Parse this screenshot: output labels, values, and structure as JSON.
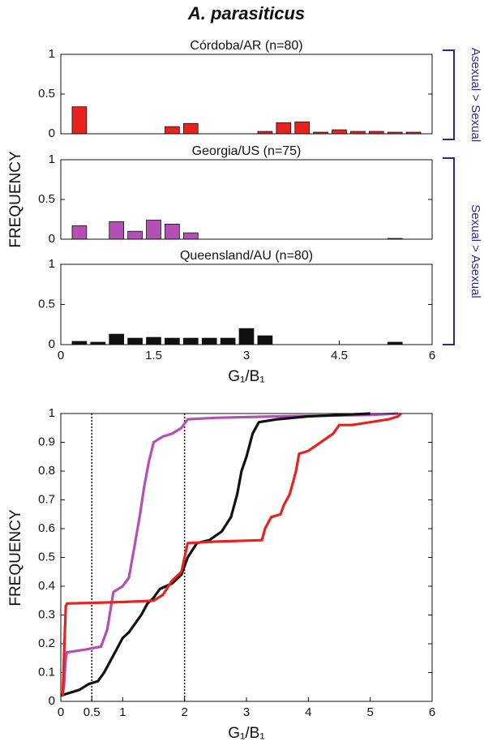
{
  "title": "A. parasiticus",
  "chart_data": [
    {
      "type": "bar",
      "title": "Córdoba/AR (n=80)",
      "color": "#e8231f",
      "annotation": "Asexual > Sexual",
      "x": [
        0.3,
        0.6,
        0.9,
        1.2,
        1.5,
        1.8,
        2.1,
        2.4,
        2.7,
        3.0,
        3.3,
        3.6,
        3.9,
        4.2,
        4.5,
        4.8,
        5.1,
        5.4,
        5.7
      ],
      "values": [
        0.34,
        0,
        0,
        0,
        0,
        0.09,
        0.13,
        0,
        0,
        0,
        0.03,
        0.14,
        0.15,
        0.02,
        0.05,
        0.03,
        0.03,
        0.02,
        0.02
      ],
      "xlim": [
        0,
        6
      ],
      "ylim": [
        0,
        1
      ],
      "yticks": [
        0,
        0.5,
        1
      ]
    },
    {
      "type": "bar",
      "title": "Georgia/US (n=75)",
      "color": "#b44fb4",
      "annotation": "Sexual > Asexual",
      "ylabel": "FREQUENCY",
      "x": [
        0.3,
        0.6,
        0.9,
        1.2,
        1.5,
        1.8,
        2.1,
        2.4,
        2.7,
        3.0,
        3.3,
        3.6,
        3.9,
        4.2,
        4.5,
        4.8,
        5.1,
        5.4,
        5.7
      ],
      "values": [
        0.17,
        0,
        0.22,
        0.1,
        0.24,
        0.19,
        0.08,
        0,
        0,
        0,
        0,
        0,
        0,
        0,
        0,
        0,
        0,
        0.01,
        0
      ],
      "xlim": [
        0,
        6
      ],
      "ylim": [
        0,
        1
      ],
      "yticks": [
        0,
        0.5,
        1
      ]
    },
    {
      "type": "bar",
      "title": "Queensland/AU (n=80)",
      "color": "#111111",
      "xlabel": "G₁/B₁",
      "x": [
        0.3,
        0.6,
        0.9,
        1.2,
        1.5,
        1.8,
        2.1,
        2.4,
        2.7,
        3.0,
        3.3,
        3.6,
        3.9,
        4.2,
        4.5,
        4.8,
        5.1,
        5.4,
        5.7
      ],
      "values": [
        0.04,
        0.03,
        0.13,
        0.08,
        0.09,
        0.08,
        0.08,
        0.08,
        0.08,
        0.2,
        0.11,
        0,
        0,
        0,
        0,
        0,
        0,
        0.03,
        0
      ],
      "xlim": [
        0,
        6
      ],
      "ylim": [
        0,
        1
      ],
      "yticks": [
        0,
        0.5,
        1
      ],
      "xticks": [
        0,
        1.5,
        3,
        4.5,
        6
      ]
    },
    {
      "type": "line",
      "xlabel": "G₁/B₁",
      "ylabel": "FREQUENCY",
      "xlim": [
        0,
        6
      ],
      "ylim": [
        0,
        1
      ],
      "xticks": [
        0,
        0.5,
        1,
        2,
        3,
        4,
        5,
        6
      ],
      "yticks": [
        0,
        0.1,
        0.2,
        0.3,
        0.4,
        0.5,
        0.6,
        0.7,
        0.8,
        0.9,
        1
      ],
      "vlines": [
        0.5,
        2
      ],
      "series": [
        {
          "color": "#b44fb4",
          "x": [
            0.02,
            0.05,
            0.08,
            0.1,
            0.4,
            0.65,
            0.75,
            0.85,
            1.0,
            1.1,
            1.2,
            1.28,
            1.35,
            1.42,
            1.5,
            1.65,
            1.8,
            1.95,
            2.05,
            2.5,
            3.5,
            5,
            5.45
          ],
          "values": [
            0.02,
            0.05,
            0.15,
            0.17,
            0.18,
            0.19,
            0.25,
            0.38,
            0.4,
            0.43,
            0.55,
            0.65,
            0.75,
            0.83,
            0.9,
            0.92,
            0.93,
            0.95,
            0.98,
            0.985,
            0.99,
            0.995,
            1
          ]
        },
        {
          "color": "#111111",
          "x": [
            0,
            0.3,
            0.45,
            0.6,
            0.7,
            0.8,
            0.9,
            1.0,
            1.1,
            1.3,
            1.4,
            1.5,
            1.6,
            1.8,
            1.95,
            2.05,
            2.2,
            2.4,
            2.6,
            2.75,
            2.85,
            2.92,
            3.0,
            3.1,
            3.2,
            3.5,
            4.0,
            4.5,
            5.0
          ],
          "values": [
            0.02,
            0.04,
            0.06,
            0.07,
            0.1,
            0.14,
            0.18,
            0.22,
            0.24,
            0.3,
            0.34,
            0.36,
            0.39,
            0.41,
            0.44,
            0.5,
            0.55,
            0.56,
            0.59,
            0.64,
            0.72,
            0.8,
            0.85,
            0.93,
            0.97,
            0.98,
            0.99,
            0.995,
            1
          ]
        },
        {
          "color": "#e8231f",
          "x": [
            0.03,
            0.08,
            0.1,
            1.0,
            1.5,
            1.65,
            1.8,
            1.95,
            2.05,
            2.5,
            3.25,
            3.3,
            3.4,
            3.55,
            3.6,
            3.7,
            3.75,
            3.8,
            3.85,
            4.0,
            4.2,
            4.4,
            4.5,
            4.7,
            5.0,
            5.3,
            5.45,
            5.5
          ],
          "values": [
            0.02,
            0.33,
            0.34,
            0.345,
            0.35,
            0.37,
            0.42,
            0.45,
            0.55,
            0.555,
            0.56,
            0.6,
            0.64,
            0.65,
            0.68,
            0.72,
            0.76,
            0.8,
            0.86,
            0.87,
            0.9,
            0.93,
            0.96,
            0.96,
            0.97,
            0.98,
            0.99,
            1
          ]
        }
      ]
    }
  ]
}
